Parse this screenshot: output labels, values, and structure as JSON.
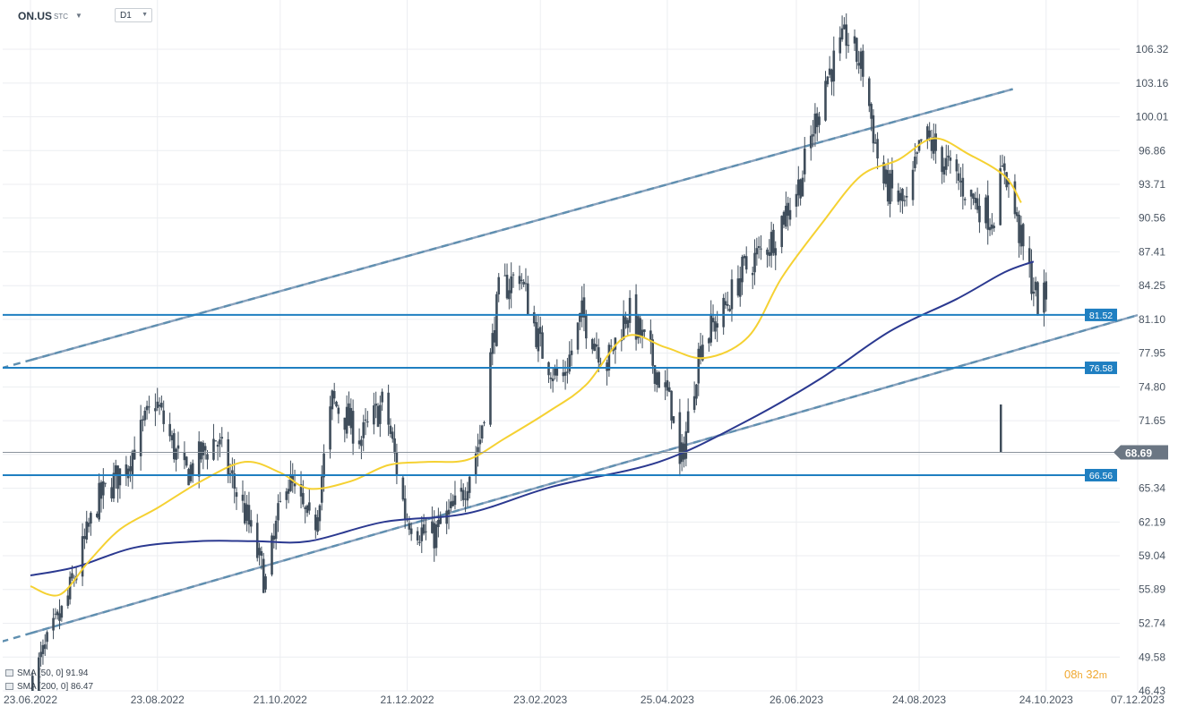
{
  "header": {
    "symbol": "ON.US",
    "symbol_sub": "STC",
    "timeframe": "D1"
  },
  "legend": {
    "sma50": "SMA [50, 0] 91.94",
    "sma200": "SMA [200, 0] 86.47"
  },
  "countdown": {
    "hours": "08",
    "h": "h",
    "minutes": "32",
    "m": "m"
  },
  "colors": {
    "candle": "#3f4d5b",
    "sma50": "#f5d132",
    "sma200": "#2b3990",
    "level": "#1f7fc1",
    "channel_dash_a": "#8aa2bd",
    "channel_dash_b": "#5f8fb0",
    "last_price": "#6b7683"
  },
  "chart_data": {
    "type": "candlestick",
    "symbol": "ON.US",
    "timeframe": "D1",
    "x_range": [
      "2022-06-23",
      "2023-12-07"
    ],
    "ylim": [
      46.43,
      108.5
    ],
    "y_ticks": [
      "106.32",
      "103.16",
      "100.01",
      "96.86",
      "93.71",
      "90.56",
      "87.41",
      "84.25",
      "81.10",
      "77.95",
      "74.80",
      "71.65",
      "68.50",
      "65.34",
      "62.19",
      "59.04",
      "55.89",
      "52.74",
      "49.58",
      "46.43"
    ],
    "x_ticks": [
      "23.06.2022",
      "23.08.2022",
      "21.10.2022",
      "21.12.2022",
      "23.02.2023",
      "25.04.2023",
      "26.06.2023",
      "24.08.2023",
      "24.10.2023",
      "07.12.2023"
    ],
    "levels": [
      {
        "label": "81.52",
        "value": 81.52
      },
      {
        "label": "76.58",
        "value": 76.58
      },
      {
        "label": "66.56",
        "value": 66.56
      }
    ],
    "last_price": {
      "label": "68.69",
      "value": 68.69
    },
    "channel": {
      "upper": [
        {
          "x": "2022-06-23",
          "y": 77.3
        },
        {
          "x": "2023-10-08",
          "y": 102.6
        }
      ],
      "lower": [
        {
          "x": "2022-06-23",
          "y": 51.8
        },
        {
          "x": "2023-12-07",
          "y": 81.5
        }
      ]
    },
    "price_path": [
      {
        "x": "2022-06-24",
        "y": 47.5
      },
      {
        "x": "2022-07-10",
        "y": 54.5
      },
      {
        "x": "2022-07-25",
        "y": 64.0
      },
      {
        "x": "2022-08-08",
        "y": 67.5
      },
      {
        "x": "2022-08-22",
        "y": 73.5
      },
      {
        "x": "2022-09-05",
        "y": 66.5
      },
      {
        "x": "2022-09-20",
        "y": 70.0
      },
      {
        "x": "2022-10-05",
        "y": 62.5
      },
      {
        "x": "2022-10-14",
        "y": 56.5
      },
      {
        "x": "2022-10-24",
        "y": 66.5
      },
      {
        "x": "2022-11-06",
        "y": 61.0
      },
      {
        "x": "2022-11-15",
        "y": 73.5
      },
      {
        "x": "2022-11-29",
        "y": 70.0
      },
      {
        "x": "2022-12-10",
        "y": 73.5
      },
      {
        "x": "2022-12-20",
        "y": 63.0
      },
      {
        "x": "2023-01-01",
        "y": 60.5
      },
      {
        "x": "2023-01-15",
        "y": 64.0
      },
      {
        "x": "2023-01-25",
        "y": 70.0
      },
      {
        "x": "2023-02-03",
        "y": 83.5
      },
      {
        "x": "2023-02-13",
        "y": 85.5
      },
      {
        "x": "2023-02-23",
        "y": 78.5
      },
      {
        "x": "2023-03-05",
        "y": 75.0
      },
      {
        "x": "2023-03-15",
        "y": 81.5
      },
      {
        "x": "2023-03-27",
        "y": 77.0
      },
      {
        "x": "2023-04-06",
        "y": 82.0
      },
      {
        "x": "2023-04-16",
        "y": 78.0
      },
      {
        "x": "2023-04-27",
        "y": 73.0
      },
      {
        "x": "2023-05-01",
        "y": 67.0
      },
      {
        "x": "2023-05-11",
        "y": 79.0
      },
      {
        "x": "2023-05-21",
        "y": 81.5
      },
      {
        "x": "2023-05-31",
        "y": 85.5
      },
      {
        "x": "2023-06-14",
        "y": 88.5
      },
      {
        "x": "2023-06-28",
        "y": 94.0
      },
      {
        "x": "2023-07-10",
        "y": 103.5
      },
      {
        "x": "2023-07-20",
        "y": 107.5
      },
      {
        "x": "2023-07-28",
        "y": 104.5
      },
      {
        "x": "2023-08-06",
        "y": 94.0
      },
      {
        "x": "2023-08-18",
        "y": 91.5
      },
      {
        "x": "2023-08-26",
        "y": 98.5
      },
      {
        "x": "2023-09-04",
        "y": 96.0
      },
      {
        "x": "2023-09-16",
        "y": 93.0
      },
      {
        "x": "2023-09-28",
        "y": 90.5
      },
      {
        "x": "2023-10-04",
        "y": 95.5
      },
      {
        "x": "2023-10-13",
        "y": 87.5
      },
      {
        "x": "2023-10-21",
        "y": 82.0
      },
      {
        "x": "2023-10-24",
        "y": 83.5
      }
    ],
    "series": [
      {
        "name": "SMA [50, 0]",
        "points": [
          {
            "x": "2022-06-23",
            "y": 56.2
          },
          {
            "x": "2022-07-07",
            "y": 55.4
          },
          {
            "x": "2022-07-21",
            "y": 58.5
          },
          {
            "x": "2022-08-05",
            "y": 61.5
          },
          {
            "x": "2022-08-23",
            "y": 63.5
          },
          {
            "x": "2022-09-13",
            "y": 66.0
          },
          {
            "x": "2022-10-04",
            "y": 67.8
          },
          {
            "x": "2022-10-21",
            "y": 66.8
          },
          {
            "x": "2022-11-04",
            "y": 65.3
          },
          {
            "x": "2022-11-24",
            "y": 66.0
          },
          {
            "x": "2022-12-12",
            "y": 67.5
          },
          {
            "x": "2022-12-31",
            "y": 67.8
          },
          {
            "x": "2023-01-19",
            "y": 68.0
          },
          {
            "x": "2023-02-06",
            "y": 70.0
          },
          {
            "x": "2023-02-27",
            "y": 72.5
          },
          {
            "x": "2023-03-17",
            "y": 75.0
          },
          {
            "x": "2023-04-05",
            "y": 79.5
          },
          {
            "x": "2023-04-24",
            "y": 78.5
          },
          {
            "x": "2023-05-13",
            "y": 77.5
          },
          {
            "x": "2023-06-03",
            "y": 79.5
          },
          {
            "x": "2023-06-19",
            "y": 85.0
          },
          {
            "x": "2023-07-08",
            "y": 90.0
          },
          {
            "x": "2023-07-27",
            "y": 94.5
          },
          {
            "x": "2023-08-14",
            "y": 96.0
          },
          {
            "x": "2023-08-31",
            "y": 98.0
          },
          {
            "x": "2023-09-17",
            "y": 96.5
          },
          {
            "x": "2023-10-04",
            "y": 94.5
          },
          {
            "x": "2023-10-12",
            "y": 92.0
          }
        ]
      },
      {
        "name": "SMA [200, 0]",
        "points": [
          {
            "x": "2022-06-23",
            "y": 57.2
          },
          {
            "x": "2022-07-15",
            "y": 58.0
          },
          {
            "x": "2022-08-12",
            "y": 59.8
          },
          {
            "x": "2022-09-12",
            "y": 60.4
          },
          {
            "x": "2022-10-09",
            "y": 60.4
          },
          {
            "x": "2022-11-04",
            "y": 60.4
          },
          {
            "x": "2022-12-10",
            "y": 62.2
          },
          {
            "x": "2023-01-19",
            "y": 63.0
          },
          {
            "x": "2023-03-01",
            "y": 65.5
          },
          {
            "x": "2023-04-21",
            "y": 67.8
          },
          {
            "x": "2023-06-01",
            "y": 71.5
          },
          {
            "x": "2023-07-07",
            "y": 75.5
          },
          {
            "x": "2023-08-10",
            "y": 80.0
          },
          {
            "x": "2023-09-11",
            "y": 83.0
          },
          {
            "x": "2023-10-04",
            "y": 85.5
          },
          {
            "x": "2023-10-18",
            "y": 86.5
          }
        ]
      }
    ]
  }
}
